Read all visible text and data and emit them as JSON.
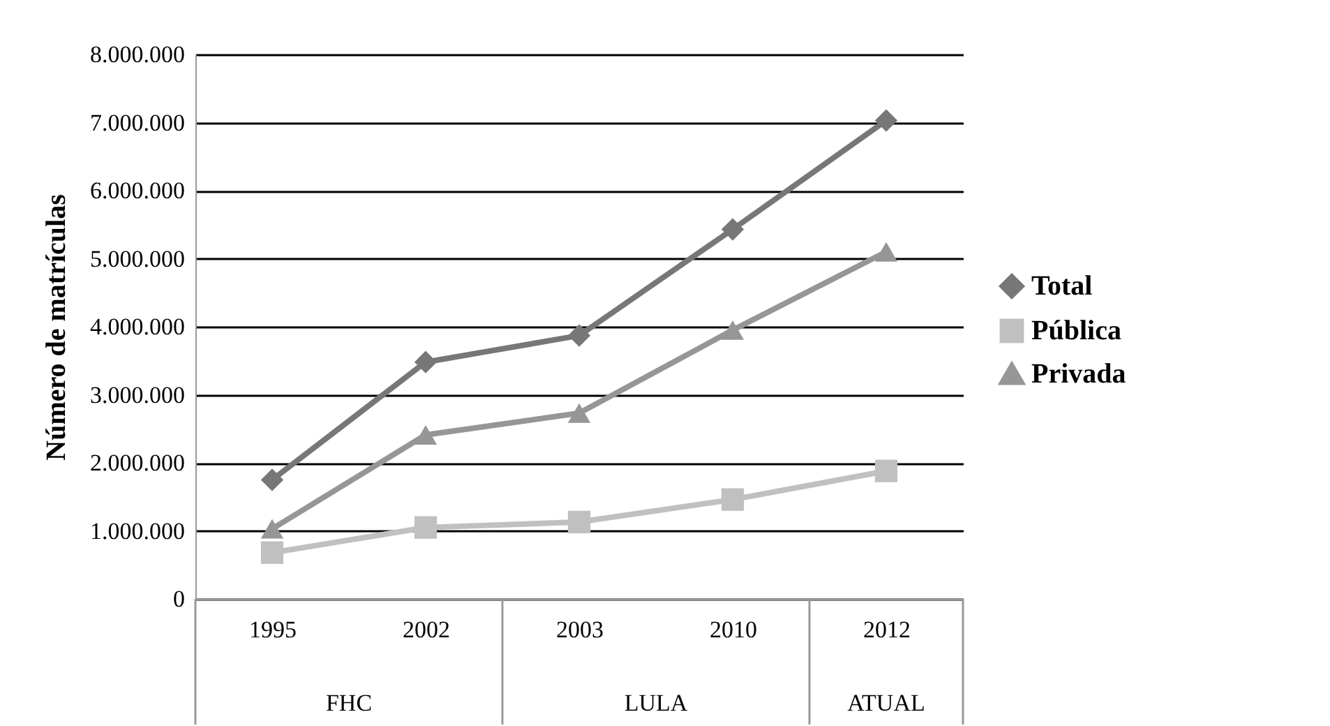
{
  "chart_data": {
    "type": "line",
    "ylabel": "Número de matrículas",
    "categories": [
      "1995",
      "2002",
      "2003",
      "2010",
      "2012"
    ],
    "series": [
      {
        "name": "Total",
        "color": "#777777",
        "marker": "diamond",
        "values": [
          1750000,
          3480000,
          3870000,
          5430000,
          7030000
        ]
      },
      {
        "name": "Pública",
        "color": "#c0c0c0",
        "marker": "square",
        "values": [
          680000,
          1050000,
          1130000,
          1460000,
          1880000
        ]
      },
      {
        "name": "Privada",
        "color": "#969696",
        "marker": "triangle",
        "values": [
          1030000,
          2410000,
          2730000,
          3950000,
          5100000
        ]
      }
    ],
    "ylim": [
      0,
      8000000
    ],
    "yticks": [
      {
        "value": 0,
        "label": "0"
      },
      {
        "value": 1000000,
        "label": "1.000.000"
      },
      {
        "value": 2000000,
        "label": "2.000.000"
      },
      {
        "value": 3000000,
        "label": "3.000.000"
      },
      {
        "value": 4000000,
        "label": "4.000.000"
      },
      {
        "value": 5000000,
        "label": "5.000.000"
      },
      {
        "value": 6000000,
        "label": "6.000.000"
      },
      {
        "value": 7000000,
        "label": "7.000.000"
      },
      {
        "value": 8000000,
        "label": "8.000.000"
      }
    ],
    "annotations": [
      "FHC",
      "LULA",
      "ATUAL"
    ],
    "grid": "y",
    "legend": "right"
  }
}
